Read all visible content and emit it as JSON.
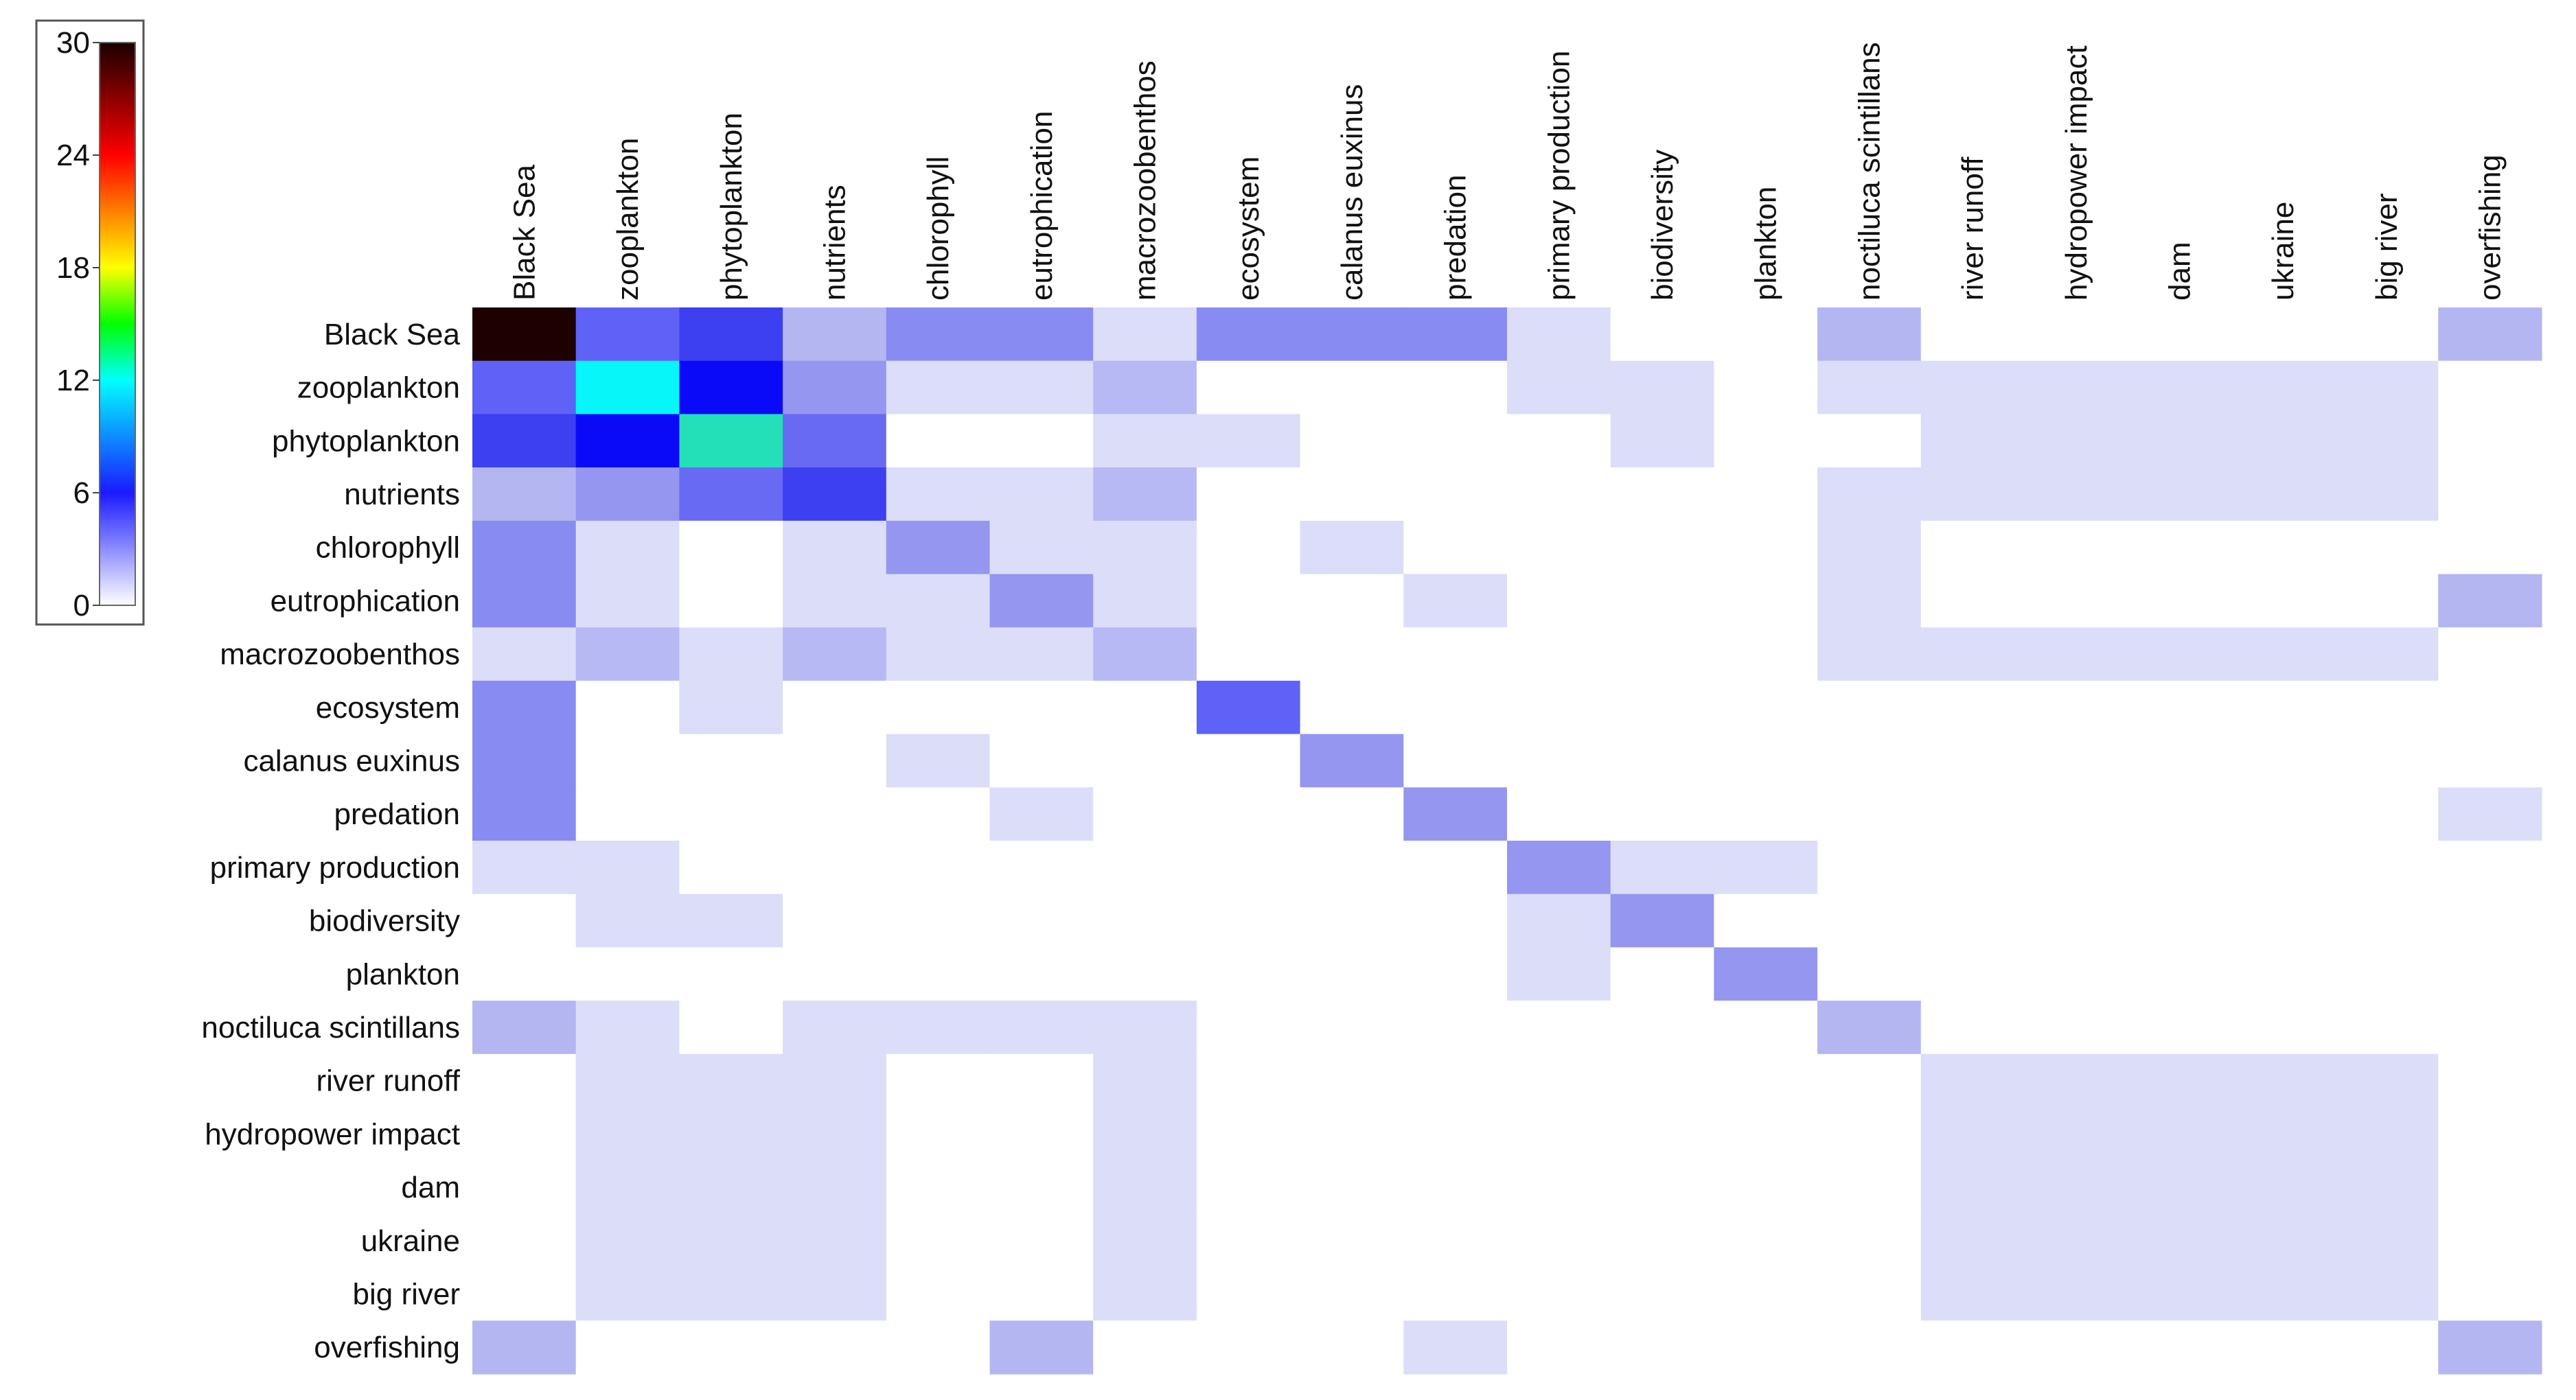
{
  "chart_data": {
    "type": "heatmap",
    "row_labels": [
      "Black Sea",
      "zooplankton",
      "phytoplankton",
      "nutrients",
      "chlorophyll",
      "eutrophication",
      "macrozoobenthos",
      "ecosystem",
      "calanus euxinus",
      "predation",
      "primary production",
      "biodiversity",
      "plankton",
      "noctiluca scintillans",
      "river runoff",
      "hydropower impact",
      "dam",
      "ukraine",
      "big river",
      "overfishing"
    ],
    "column_labels": [
      "Black Sea",
      "zooplankton",
      "phytoplankton",
      "nutrients",
      "chlorophyll",
      "eutrophication",
      "macrozoobenthos",
      "ecosystem",
      "calanus euxinus",
      "predation",
      "primary production",
      "biodiversity",
      "plankton",
      "noctiluca scintillans",
      "river runoff",
      "hydropower impact",
      "dam",
      "ukraine",
      "big river",
      "overfishing"
    ],
    "values": [
      [
        30,
        7,
        8,
        3,
        5,
        5,
        1,
        5,
        5,
        5,
        1,
        0,
        0,
        3,
        0,
        0,
        0,
        0,
        0,
        3
      ],
      [
        7,
        12,
        9,
        4,
        1,
        1,
        2,
        0,
        0,
        0,
        1,
        1,
        0,
        1,
        1,
        1,
        1,
        1,
        1,
        0
      ],
      [
        8,
        9,
        13,
        6,
        0,
        0,
        1,
        1,
        0,
        0,
        0,
        1,
        0,
        0,
        1,
        1,
        1,
        1,
        1,
        0
      ],
      [
        3,
        4,
        6,
        8,
        1,
        1,
        2,
        0,
        0,
        0,
        0,
        0,
        0,
        1,
        1,
        1,
        1,
        1,
        1,
        0
      ],
      [
        5,
        1,
        0,
        1,
        4,
        1,
        1,
        0,
        1,
        0,
        0,
        0,
        0,
        1,
        0,
        0,
        0,
        0,
        0,
        0
      ],
      [
        5,
        1,
        0,
        1,
        1,
        4,
        1,
        0,
        0,
        1,
        0,
        0,
        0,
        1,
        0,
        0,
        0,
        0,
        0,
        3
      ],
      [
        1,
        2,
        1,
        2,
        1,
        1,
        2,
        0,
        0,
        0,
        0,
        0,
        0,
        1,
        1,
        1,
        1,
        1,
        1,
        0
      ],
      [
        5,
        0,
        1,
        0,
        0,
        0,
        0,
        7,
        0,
        0,
        0,
        0,
        0,
        0,
        0,
        0,
        0,
        0,
        0,
        0
      ],
      [
        5,
        0,
        0,
        0,
        1,
        0,
        0,
        0,
        4,
        0,
        0,
        0,
        0,
        0,
        0,
        0,
        0,
        0,
        0,
        0
      ],
      [
        5,
        0,
        0,
        0,
        0,
        1,
        0,
        0,
        0,
        4,
        0,
        0,
        0,
        0,
        0,
        0,
        0,
        0,
        0,
        1
      ],
      [
        1,
        1,
        0,
        0,
        0,
        0,
        0,
        0,
        0,
        0,
        4,
        1,
        1,
        0,
        0,
        0,
        0,
        0,
        0,
        0
      ],
      [
        0,
        1,
        1,
        0,
        0,
        0,
        0,
        0,
        0,
        0,
        1,
        4,
        0,
        0,
        0,
        0,
        0,
        0,
        0,
        0
      ],
      [
        0,
        0,
        0,
        0,
        0,
        0,
        0,
        0,
        0,
        0,
        1,
        0,
        4,
        0,
        0,
        0,
        0,
        0,
        0,
        0
      ],
      [
        3,
        1,
        0,
        1,
        1,
        1,
        1,
        0,
        0,
        0,
        0,
        0,
        0,
        3,
        0,
        0,
        0,
        0,
        0,
        0
      ],
      [
        0,
        1,
        1,
        1,
        0,
        0,
        1,
        0,
        0,
        0,
        0,
        0,
        0,
        0,
        1,
        1,
        1,
        1,
        1,
        0
      ],
      [
        0,
        1,
        1,
        1,
        0,
        0,
        1,
        0,
        0,
        0,
        0,
        0,
        0,
        0,
        1,
        1,
        1,
        1,
        1,
        0
      ],
      [
        0,
        1,
        1,
        1,
        0,
        0,
        1,
        0,
        0,
        0,
        0,
        0,
        0,
        0,
        1,
        1,
        1,
        1,
        1,
        0
      ],
      [
        0,
        1,
        1,
        1,
        0,
        0,
        1,
        0,
        0,
        0,
        0,
        0,
        0,
        0,
        1,
        1,
        1,
        1,
        1,
        0
      ],
      [
        0,
        1,
        1,
        1,
        0,
        0,
        1,
        0,
        0,
        0,
        0,
        0,
        0,
        0,
        1,
        1,
        1,
        1,
        1,
        0
      ],
      [
        3,
        0,
        0,
        0,
        0,
        3,
        0,
        0,
        0,
        1,
        0,
        0,
        0,
        0,
        0,
        0,
        0,
        0,
        0,
        3
      ]
    ],
    "colorbar": {
      "range": [
        0,
        30
      ],
      "ticks": [
        "30",
        "24",
        "18",
        "12",
        "6",
        "0"
      ],
      "colors": [
        "#ffffff",
        "#1a1aff",
        "#00ffff",
        "#00ff00",
        "#ffff00",
        "#ff0000",
        "#1a0000"
      ],
      "stops": [
        0,
        0.2,
        0.4,
        0.5,
        0.6,
        0.8,
        1
      ]
    },
    "grid": false,
    "legend_placement": "top-left"
  }
}
